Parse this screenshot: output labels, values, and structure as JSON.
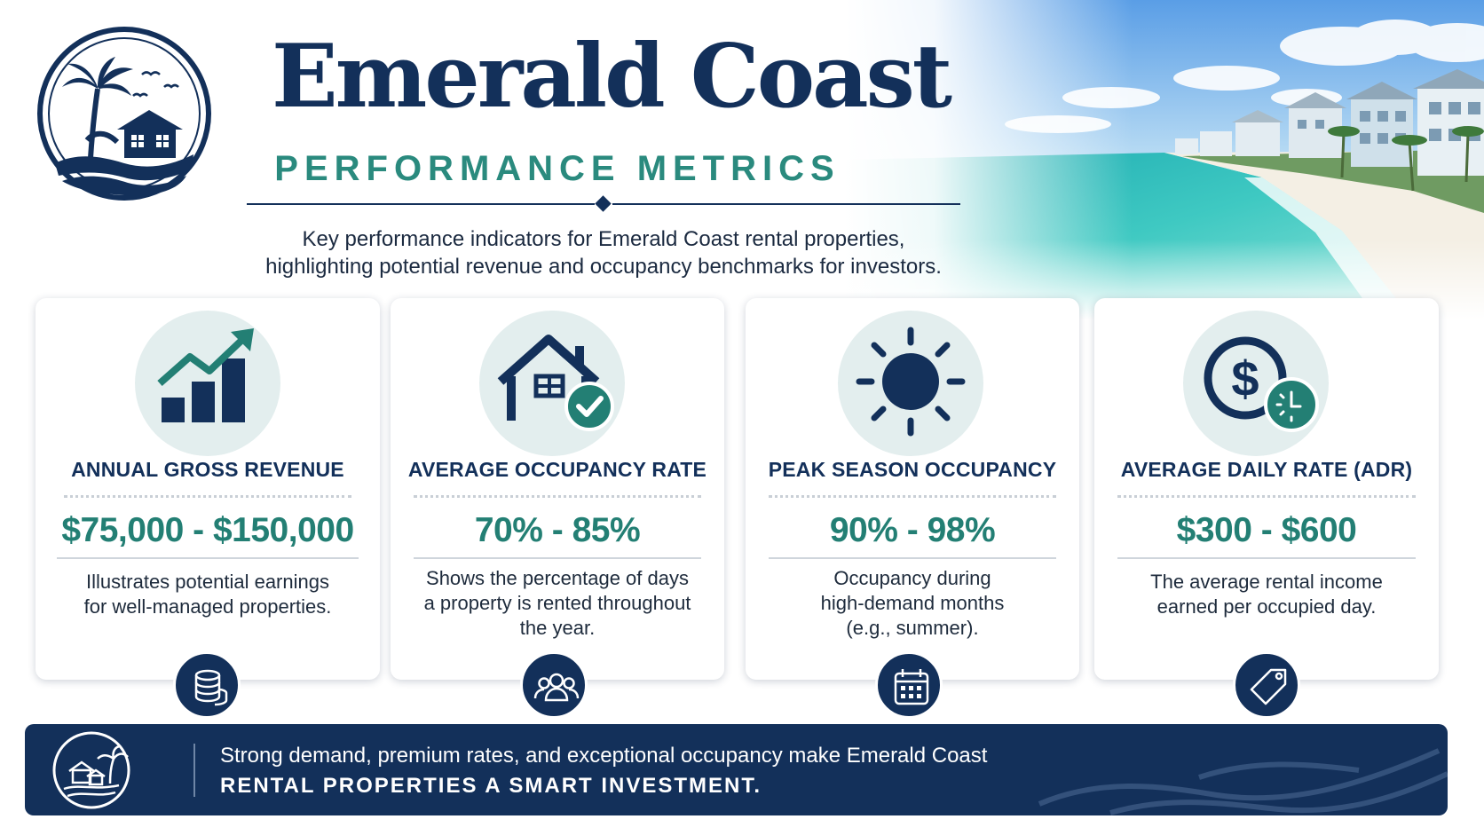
{
  "header": {
    "title": "Emerald Coast",
    "subtitle": "PERFORMANCE METRICS",
    "intro_line1": "Key performance indicators for Emerald Coast rental properties,",
    "intro_line2": "highlighting potential revenue and occupancy benchmarks for investors."
  },
  "logo": {
    "icon": "palm-house-waves-icon"
  },
  "metrics": [
    {
      "icon": "growth-chart-icon",
      "title": "ANNUAL GROSS REVENUE",
      "value": "$75,000 - $150,000",
      "desc_line1": "Illustrates potential earnings",
      "desc_line2": "for well-managed properties.",
      "desc_line3": "",
      "badge_icon": "coins-icon"
    },
    {
      "icon": "house-check-icon",
      "title": "AVERAGE OCCUPANCY RATE",
      "value": "70% - 85%",
      "desc_line1": "Shows the percentage of days",
      "desc_line2": "a property is rented throughout",
      "desc_line3": "the year.",
      "badge_icon": "people-icon"
    },
    {
      "icon": "sun-icon",
      "title": "PEAK SEASON OCCUPANCY",
      "value": "90% - 98%",
      "desc_line1": "Occupancy during",
      "desc_line2": "high-demand months",
      "desc_line3": "(e.g., summer).",
      "badge_icon": "calendar-icon"
    },
    {
      "icon": "dollar-clock-icon",
      "title": "AVERAGE DAILY RATE (ADR)",
      "value": "$300 - $600",
      "desc_line1": "The average rental income",
      "desc_line2": "earned per occupied day.",
      "desc_line3": "",
      "badge_icon": "price-tag-icon"
    }
  ],
  "banner": {
    "line1": "Strong demand, premium rates, and exceptional occupancy make Emerald Coast",
    "line2": "RENTAL PROPERTIES A SMART INVESTMENT."
  },
  "colors": {
    "navy": "#13305a",
    "teal": "#2a8a7e",
    "value_teal": "#237f74",
    "icon_bg": "#e3eeee",
    "sea": "#3fc3bf"
  }
}
